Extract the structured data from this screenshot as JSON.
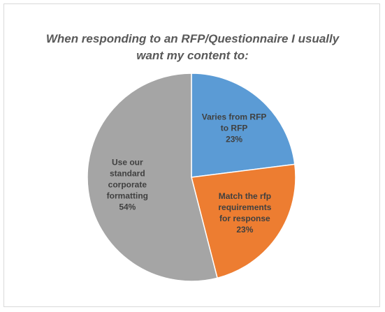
{
  "chart_data": {
    "type": "pie",
    "title_lines": [
      "When responding to an RFP/Questionnaire I usually",
      "want my content to:"
    ],
    "start_angle_deg": 0,
    "direction": "clockwise",
    "slices": [
      {
        "label_lines": [
          "Varies from RFP",
          "to RFP"
        ],
        "value": 23,
        "value_label": "23%",
        "color": "#5B9BD5"
      },
      {
        "label_lines": [
          "Match the rfp",
          "requirements",
          "for response"
        ],
        "value": 23,
        "value_label": "23%",
        "color": "#ED7D31"
      },
      {
        "label_lines": [
          "Use our",
          "standard",
          "corporate",
          "formatting"
        ],
        "value": 54,
        "value_label": "54%",
        "color": "#A5A5A5"
      }
    ],
    "label_color": "#404040",
    "legend": "none"
  }
}
